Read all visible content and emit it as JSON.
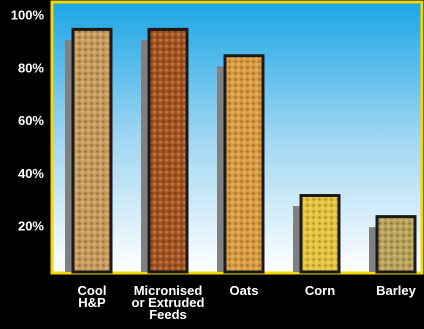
{
  "chart_data": {
    "type": "bar",
    "categories": [
      "Cool\nH&P",
      "Micronised\nor Extruded\nFeeds",
      "Oats",
      "Corn",
      "Barley"
    ],
    "series": [
      {
        "color": "#808080",
        "values": [
          91,
          91,
          81,
          28,
          20
        ]
      },
      {
        "color": "#c89a5a",
        "values": [
          95,
          95,
          85,
          32,
          24
        ]
      }
    ],
    "bar_colors": [
      "#c89a5a",
      "#a4531f",
      "#d99b3e",
      "#e6c23a",
      "#b9a258"
    ],
    "ylim": [
      3,
      105
    ],
    "yticks": [
      {
        "value": 20,
        "label": "20%"
      },
      {
        "value": 40,
        "label": "40%"
      },
      {
        "value": 60,
        "label": "60%"
      },
      {
        "value": 80,
        "label": "80%"
      },
      {
        "value": 100,
        "label": "100%"
      }
    ]
  }
}
